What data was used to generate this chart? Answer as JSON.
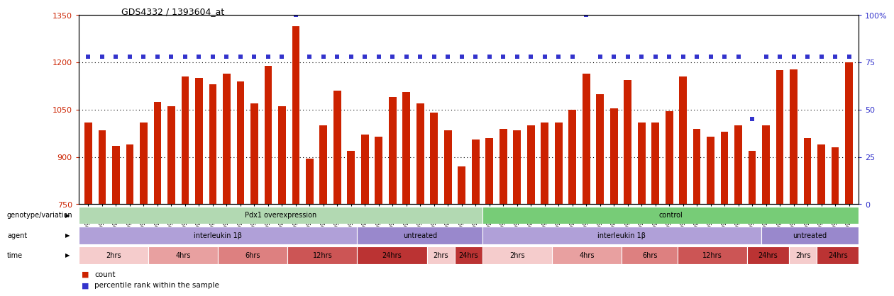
{
  "title": "GDS4332 / 1393604_at",
  "ylim_left": [
    750,
    1350
  ],
  "ylim_right": [
    0,
    100
  ],
  "yticks_left": [
    750,
    900,
    1050,
    1200,
    1350
  ],
  "yticks_right": [
    0,
    25,
    50,
    75,
    100
  ],
  "samples": [
    "GSM998740",
    "GSM998753",
    "GSM998766",
    "GSM998774",
    "GSM998729",
    "GSM998754",
    "GSM998767",
    "GSM998775",
    "GSM998741",
    "GSM998755",
    "GSM998768",
    "GSM998776",
    "GSM998730",
    "GSM998742",
    "GSM998747",
    "GSM998777",
    "GSM998731",
    "GSM998748",
    "GSM998756",
    "GSM998769",
    "GSM998732",
    "GSM998749",
    "GSM998757",
    "GSM998778",
    "GSM998733",
    "GSM998758",
    "GSM998770",
    "GSM998779",
    "GSM998734",
    "GSM998743",
    "GSM998759",
    "GSM998780",
    "GSM998735",
    "GSM998750",
    "GSM998760",
    "GSM998782",
    "GSM998744",
    "GSM998751",
    "GSM998761",
    "GSM998771",
    "GSM998736",
    "GSM998745",
    "GSM998762",
    "GSM998781",
    "GSM998737",
    "GSM998752",
    "GSM998763",
    "GSM998772",
    "GSM998738",
    "GSM998764",
    "GSM998773",
    "GSM998783",
    "GSM998739",
    "GSM998746",
    "GSM998765",
    "GSM998784"
  ],
  "bar_values": [
    1010,
    985,
    935,
    940,
    1010,
    1075,
    1060,
    1155,
    1150,
    1130,
    1165,
    1140,
    1070,
    1190,
    1060,
    1315,
    895,
    1000,
    1110,
    920,
    970,
    965,
    1090,
    1105,
    1070,
    1040,
    985,
    870,
    955,
    960,
    990,
    985,
    1000,
    1010,
    1010,
    1050,
    1165,
    1100,
    1055,
    1145,
    1010,
    1010,
    1045,
    1155,
    990,
    965,
    980,
    1000,
    920,
    1000,
    1175,
    1178,
    960,
    940,
    930,
    1200
  ],
  "percentile_values": [
    78,
    78,
    78,
    78,
    78,
    78,
    78,
    78,
    78,
    78,
    78,
    78,
    78,
    78,
    78,
    100,
    78,
    78,
    78,
    78,
    78,
    78,
    78,
    78,
    78,
    78,
    78,
    78,
    78,
    78,
    78,
    78,
    78,
    78,
    78,
    78,
    100,
    78,
    78,
    78,
    78,
    78,
    78,
    78,
    78,
    78,
    78,
    78,
    45,
    78,
    78,
    78,
    78,
    78,
    78,
    78
  ],
  "bar_color": "#cc2200",
  "percentile_color": "#3333cc",
  "bg_color": "#ffffff",
  "genotype_label": "genotype/variation",
  "agent_label": "agent",
  "time_label": "time",
  "genotype_groups": [
    {
      "label": "Pdx1 overexpression",
      "start": 0,
      "end": 29,
      "color": "#b2d9b2"
    },
    {
      "label": "control",
      "start": 29,
      "end": 56,
      "color": "#77cc77"
    }
  ],
  "agent_groups": [
    {
      "label": "interleukin 1β",
      "start": 0,
      "end": 20,
      "color": "#b0a0d8"
    },
    {
      "label": "untreated",
      "start": 20,
      "end": 29,
      "color": "#9988cc"
    },
    {
      "label": "interleukin 1β",
      "start": 29,
      "end": 49,
      "color": "#b0a0d8"
    },
    {
      "label": "untreated",
      "start": 49,
      "end": 56,
      "color": "#9988cc"
    }
  ],
  "time_groups": [
    {
      "label": "2hrs",
      "start": 0,
      "end": 5,
      "color": "#f5cccc"
    },
    {
      "label": "4hrs",
      "start": 5,
      "end": 10,
      "color": "#e8a0a0"
    },
    {
      "label": "6hrs",
      "start": 10,
      "end": 15,
      "color": "#dd8080"
    },
    {
      "label": "12hrs",
      "start": 15,
      "end": 20,
      "color": "#cc5555"
    },
    {
      "label": "24hrs",
      "start": 20,
      "end": 25,
      "color": "#bb3333"
    },
    {
      "label": "2hrs",
      "start": 25,
      "end": 27,
      "color": "#f5cccc"
    },
    {
      "label": "24hrs",
      "start": 27,
      "end": 29,
      "color": "#bb3333"
    },
    {
      "label": "2hrs",
      "start": 29,
      "end": 34,
      "color": "#f5cccc"
    },
    {
      "label": "4hrs",
      "start": 34,
      "end": 39,
      "color": "#e8a0a0"
    },
    {
      "label": "6hrs",
      "start": 39,
      "end": 43,
      "color": "#dd8080"
    },
    {
      "label": "12hrs",
      "start": 43,
      "end": 48,
      "color": "#cc5555"
    },
    {
      "label": "24hrs",
      "start": 48,
      "end": 51,
      "color": "#bb3333"
    },
    {
      "label": "2hrs",
      "start": 51,
      "end": 53,
      "color": "#f5cccc"
    },
    {
      "label": "24hrs",
      "start": 53,
      "end": 56,
      "color": "#bb3333"
    }
  ],
  "legend_count_label": "count",
  "legend_percentile_label": "percentile rank within the sample",
  "right_axis_label_color": "#3333cc",
  "left_axis_label_color": "#cc2200"
}
